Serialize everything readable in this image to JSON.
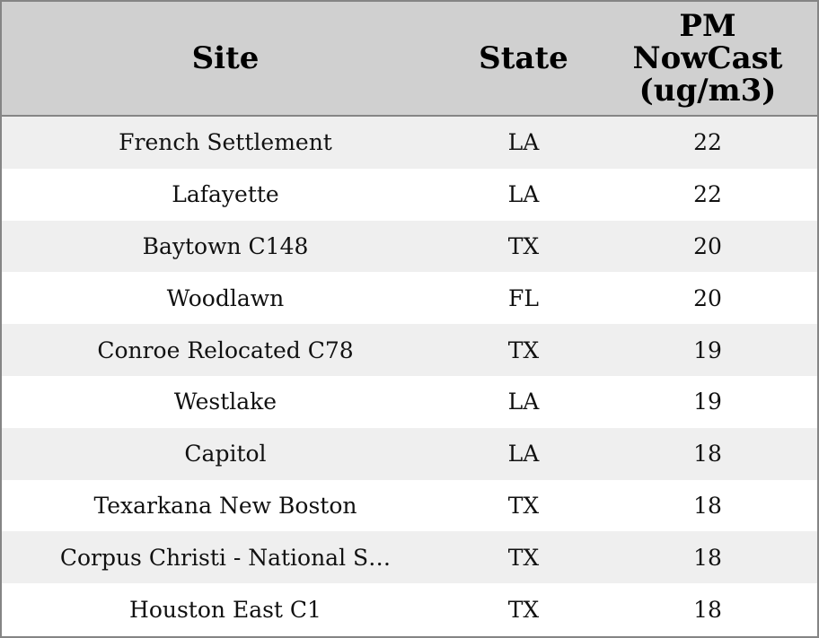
{
  "table": {
    "columns": [
      "Site",
      "State",
      "PM NowCast (ug/m3)"
    ],
    "rows": [
      [
        "French Settlement",
        "LA",
        22
      ],
      [
        "Lafayette",
        "LA",
        22
      ],
      [
        "Baytown C148",
        "TX",
        20
      ],
      [
        "Woodlawn",
        "FL",
        20
      ],
      [
        "Conroe Relocated C78",
        "TX",
        19
      ],
      [
        "Westlake",
        "LA",
        19
      ],
      [
        "Capitol",
        "LA",
        18
      ],
      [
        "Texarkana New Boston",
        "TX",
        18
      ],
      [
        "Corpus Christi - National S…",
        "TX",
        18
      ],
      [
        "Houston East C1",
        "TX",
        18
      ]
    ]
  }
}
